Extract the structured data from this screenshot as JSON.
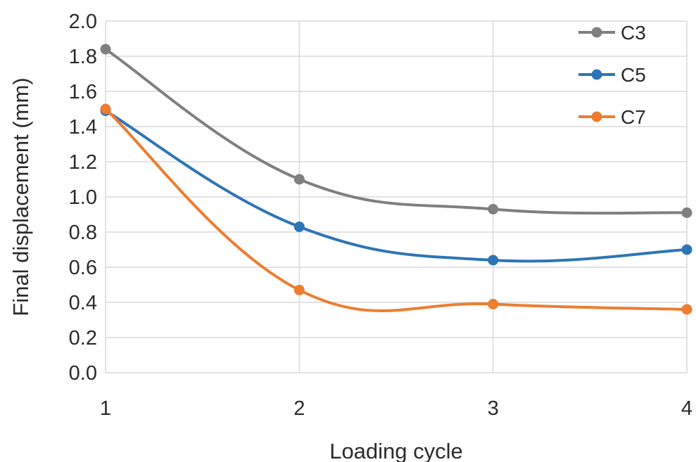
{
  "chart_data": {
    "type": "line",
    "title": "",
    "xlabel": "Loading cycle",
    "ylabel": "Final displacement (mm)",
    "categories": [
      "1",
      "2",
      "3",
      "4"
    ],
    "x": [
      1,
      2,
      3,
      4
    ],
    "xlim": [
      1,
      4
    ],
    "ylim": [
      0,
      2
    ],
    "y_ticks": [
      "0.0",
      "0.2",
      "0.4",
      "0.6",
      "0.8",
      "1.0",
      "1.2",
      "1.4",
      "1.6",
      "1.8",
      "2.0"
    ],
    "grid": true,
    "smooth": true,
    "legend_position": "top-right",
    "series": [
      {
        "name": "C3",
        "color": "#7f7f7f",
        "values": [
          1.84,
          1.1,
          0.93,
          0.91
        ]
      },
      {
        "name": "C5",
        "color": "#2e75b6",
        "values": [
          1.49,
          0.83,
          0.64,
          0.7
        ]
      },
      {
        "name": "C7",
        "color": "#ed7d31",
        "values": [
          1.5,
          0.47,
          0.39,
          0.36
        ]
      }
    ]
  }
}
